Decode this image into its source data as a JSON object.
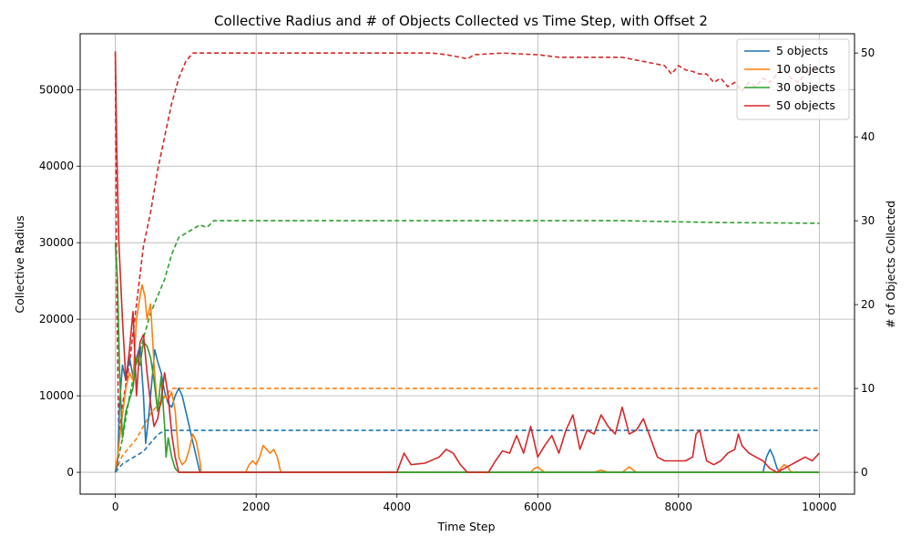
{
  "chart_data": {
    "type": "line",
    "title": "Collective Radius and # of Objects Collected vs Time Step, with Offset 2",
    "xlabel": "Time Step",
    "ylabel_left": "Collective Radius",
    "ylabel_right": "# of Objects Collected",
    "xlim": [
      -500,
      10500
    ],
    "ylim_left": [
      -2850,
      57300
    ],
    "ylim_right": [
      -2.6,
      52.3
    ],
    "x_ticks": [
      0,
      2000,
      4000,
      6000,
      8000,
      10000
    ],
    "y_left_ticks": [
      0,
      10000,
      20000,
      30000,
      40000,
      50000
    ],
    "y_right_ticks": [
      0,
      10,
      20,
      30,
      40,
      50
    ],
    "grid": true,
    "legend_position": "top-right",
    "series": [
      {
        "name": "5 objects",
        "color": "#1f77b4",
        "radius": [
          [
            0,
            0
          ],
          [
            30,
            1000
          ],
          [
            60,
            9000
          ],
          [
            100,
            14000
          ],
          [
            150,
            12000
          ],
          [
            200,
            15000
          ],
          [
            250,
            12500
          ],
          [
            300,
            15000
          ],
          [
            350,
            16500
          ],
          [
            400,
            10000
          ],
          [
            430,
            3800
          ],
          [
            470,
            7000
          ],
          [
            520,
            12000
          ],
          [
            560,
            16000
          ],
          [
            600,
            14500
          ],
          [
            650,
            13000
          ],
          [
            700,
            10500
          ],
          [
            750,
            9000
          ],
          [
            800,
            8500
          ],
          [
            850,
            10000
          ],
          [
            900,
            11000
          ],
          [
            950,
            10000
          ],
          [
            1000,
            8000
          ],
          [
            1050,
            6000
          ],
          [
            1100,
            4000
          ],
          [
            1150,
            2000
          ],
          [
            1200,
            0
          ],
          [
            9200,
            0
          ],
          [
            9250,
            2000
          ],
          [
            9300,
            3000
          ],
          [
            9350,
            2000
          ],
          [
            9400,
            500
          ],
          [
            9450,
            0
          ],
          [
            10000,
            0
          ]
        ],
        "collected": [
          [
            0,
            0
          ],
          [
            100,
            1
          ],
          [
            200,
            1.5
          ],
          [
            300,
            2
          ],
          [
            400,
            2.5
          ],
          [
            500,
            3.5
          ],
          [
            600,
            4.5
          ],
          [
            700,
            5
          ],
          [
            1000,
            5
          ],
          [
            2500,
            5
          ],
          [
            5000,
            5
          ],
          [
            7500,
            5
          ],
          [
            10000,
            5
          ]
        ]
      },
      {
        "name": "10 objects",
        "color": "#ff7f0e",
        "radius": [
          [
            0,
            500
          ],
          [
            30,
            2000
          ],
          [
            80,
            6000
          ],
          [
            150,
            11000
          ],
          [
            200,
            13000
          ],
          [
            250,
            12000
          ],
          [
            300,
            20000
          ],
          [
            350,
            23000
          ],
          [
            380,
            24500
          ],
          [
            420,
            23000
          ],
          [
            450,
            20000
          ],
          [
            500,
            22000
          ],
          [
            550,
            14000
          ],
          [
            600,
            8000
          ],
          [
            650,
            9000
          ],
          [
            700,
            10000
          ],
          [
            750,
            9500
          ],
          [
            800,
            10500
          ],
          [
            850,
            8000
          ],
          [
            900,
            2000
          ],
          [
            950,
            1000
          ],
          [
            1000,
            1500
          ],
          [
            1050,
            3000
          ],
          [
            1100,
            5000
          ],
          [
            1150,
            4000
          ],
          [
            1200,
            1500
          ],
          [
            1220,
            0
          ],
          [
            1850,
            0
          ],
          [
            1900,
            1000
          ],
          [
            1950,
            1500
          ],
          [
            2000,
            1000
          ],
          [
            2050,
            2000
          ],
          [
            2100,
            3500
          ],
          [
            2150,
            3000
          ],
          [
            2200,
            2500
          ],
          [
            2250,
            3000
          ],
          [
            2300,
            2000
          ],
          [
            2350,
            0
          ],
          [
            5900,
            0
          ],
          [
            5950,
            500
          ],
          [
            6000,
            700
          ],
          [
            6050,
            300
          ],
          [
            6100,
            0
          ],
          [
            6800,
            0
          ],
          [
            6900,
            300
          ],
          [
            7000,
            0
          ],
          [
            7200,
            0
          ],
          [
            7300,
            700
          ],
          [
            7400,
            0
          ],
          [
            9400,
            0
          ],
          [
            9450,
            500
          ],
          [
            9500,
            1000
          ],
          [
            9550,
            700
          ],
          [
            9600,
            0
          ],
          [
            10000,
            0
          ]
        ],
        "collected": [
          [
            0,
            0
          ],
          [
            100,
            2
          ],
          [
            200,
            3
          ],
          [
            300,
            4
          ],
          [
            400,
            5.5
          ],
          [
            500,
            7
          ],
          [
            600,
            8
          ],
          [
            700,
            9
          ],
          [
            800,
            10
          ],
          [
            1000,
            10
          ],
          [
            2400,
            10
          ],
          [
            5000,
            10
          ],
          [
            7500,
            10
          ],
          [
            10000,
            10
          ]
        ]
      },
      {
        "name": "30 objects",
        "color": "#2ca02c",
        "radius": [
          [
            0,
            30000
          ],
          [
            30,
            25000
          ],
          [
            60,
            13000
          ],
          [
            100,
            4500
          ],
          [
            150,
            8000
          ],
          [
            200,
            9500
          ],
          [
            250,
            11000
          ],
          [
            300,
            15000
          ],
          [
            350,
            14000
          ],
          [
            400,
            17000
          ],
          [
            450,
            16500
          ],
          [
            500,
            15000
          ],
          [
            550,
            12000
          ],
          [
            600,
            8000
          ],
          [
            650,
            12500
          ],
          [
            700,
            6000
          ],
          [
            720,
            2000
          ],
          [
            750,
            4500
          ],
          [
            800,
            2000
          ],
          [
            850,
            500
          ],
          [
            900,
            0
          ],
          [
            10000,
            0
          ]
        ],
        "collected": [
          [
            0,
            0
          ],
          [
            100,
            4
          ],
          [
            200,
            9
          ],
          [
            300,
            13
          ],
          [
            400,
            16
          ],
          [
            500,
            19
          ],
          [
            600,
            21
          ],
          [
            700,
            23
          ],
          [
            800,
            26
          ],
          [
            900,
            28
          ],
          [
            1000,
            28.5
          ],
          [
            1100,
            29
          ],
          [
            1200,
            29.5
          ],
          [
            1300,
            29.2
          ],
          [
            1400,
            30
          ],
          [
            2000,
            30
          ],
          [
            4000,
            30
          ],
          [
            7200,
            30
          ],
          [
            8500,
            29.8
          ],
          [
            10000,
            29.7
          ]
        ]
      },
      {
        "name": "50 objects",
        "color": "#d62728",
        "radius": [
          [
            0,
            55000
          ],
          [
            20,
            42000
          ],
          [
            50,
            30000
          ],
          [
            100,
            20000
          ],
          [
            150,
            12000
          ],
          [
            200,
            16000
          ],
          [
            250,
            21000
          ],
          [
            300,
            10000
          ],
          [
            350,
            17000
          ],
          [
            400,
            18000
          ],
          [
            450,
            13000
          ],
          [
            500,
            9000
          ],
          [
            550,
            6000
          ],
          [
            600,
            7000
          ],
          [
            650,
            9500
          ],
          [
            700,
            13000
          ],
          [
            750,
            10000
          ],
          [
            800,
            5000
          ],
          [
            850,
            2000
          ],
          [
            900,
            0
          ],
          [
            4000,
            0
          ],
          [
            4100,
            2500
          ],
          [
            4200,
            1000
          ],
          [
            4400,
            1200
          ],
          [
            4600,
            2000
          ],
          [
            4700,
            3000
          ],
          [
            4800,
            2500
          ],
          [
            4900,
            1000
          ],
          [
            5000,
            0
          ],
          [
            5300,
            0
          ],
          [
            5400,
            1500
          ],
          [
            5500,
            2800
          ],
          [
            5600,
            2500
          ],
          [
            5700,
            4800
          ],
          [
            5800,
            2500
          ],
          [
            5900,
            6000
          ],
          [
            6000,
            2000
          ],
          [
            6100,
            3500
          ],
          [
            6200,
            4800
          ],
          [
            6300,
            2500
          ],
          [
            6400,
            5500
          ],
          [
            6500,
            7500
          ],
          [
            6600,
            3000
          ],
          [
            6700,
            5500
          ],
          [
            6800,
            5000
          ],
          [
            6900,
            7500
          ],
          [
            7000,
            6000
          ],
          [
            7100,
            5000
          ],
          [
            7200,
            8500
          ],
          [
            7300,
            5000
          ],
          [
            7400,
            5500
          ],
          [
            7500,
            7000
          ],
          [
            7600,
            4500
          ],
          [
            7700,
            2000
          ],
          [
            7800,
            1500
          ],
          [
            7900,
            1500
          ],
          [
            8000,
            1500
          ],
          [
            8100,
            1500
          ],
          [
            8200,
            2000
          ],
          [
            8250,
            5000
          ],
          [
            8300,
            5500
          ],
          [
            8400,
            1500
          ],
          [
            8500,
            1000
          ],
          [
            8600,
            1500
          ],
          [
            8700,
            2500
          ],
          [
            8800,
            3000
          ],
          [
            8850,
            5000
          ],
          [
            8900,
            3500
          ],
          [
            9000,
            2500
          ],
          [
            9100,
            2000
          ],
          [
            9200,
            1500
          ],
          [
            9300,
            500
          ],
          [
            9400,
            0
          ],
          [
            9500,
            500
          ],
          [
            9600,
            1000
          ],
          [
            9700,
            1500
          ],
          [
            9800,
            2000
          ],
          [
            9900,
            1500
          ],
          [
            10000,
            2500
          ]
        ],
        "collected": [
          [
            0,
            50
          ],
          [
            20,
            20
          ],
          [
            50,
            4
          ],
          [
            100,
            8
          ],
          [
            200,
            13
          ],
          [
            300,
            20
          ],
          [
            400,
            27
          ],
          [
            500,
            31
          ],
          [
            600,
            36
          ],
          [
            700,
            40
          ],
          [
            800,
            44
          ],
          [
            900,
            47
          ],
          [
            1000,
            49
          ],
          [
            1100,
            50
          ],
          [
            2000,
            50
          ],
          [
            4500,
            50
          ],
          [
            4700,
            49.8
          ],
          [
            4900,
            49.5
          ],
          [
            5000,
            49.3
          ],
          [
            5100,
            49.8
          ],
          [
            5500,
            50
          ],
          [
            6000,
            49.8
          ],
          [
            6300,
            49.5
          ],
          [
            7200,
            49.5
          ],
          [
            7500,
            49
          ],
          [
            7800,
            48.5
          ],
          [
            7900,
            47.5
          ],
          [
            8000,
            48.5
          ],
          [
            8100,
            48
          ],
          [
            8200,
            47.8
          ],
          [
            8300,
            47.5
          ],
          [
            8400,
            47.5
          ],
          [
            8500,
            46.5
          ],
          [
            8600,
            47
          ],
          [
            8700,
            46
          ],
          [
            8800,
            46.5
          ],
          [
            8900,
            45.5
          ],
          [
            9000,
            46.5
          ],
          [
            9100,
            46
          ],
          [
            9200,
            47
          ],
          [
            9300,
            46.5
          ],
          [
            9400,
            47.5
          ],
          [
            9500,
            48
          ],
          [
            9600,
            47
          ],
          [
            9700,
            46.5
          ],
          [
            9800,
            47.5
          ],
          [
            9900,
            48
          ],
          [
            10000,
            48
          ]
        ]
      }
    ]
  }
}
